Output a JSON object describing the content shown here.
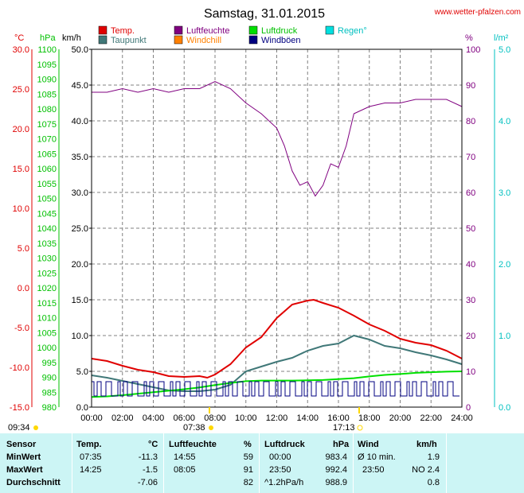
{
  "chart_data": {
    "type": "line",
    "title": "Samstag, 31.01.2015",
    "source": "www.wetter-pfalzen.com",
    "legend": [
      {
        "label": "Temp.",
        "color": "#e00000"
      },
      {
        "label": "Taupunkt",
        "color": "#407878"
      },
      {
        "label": "Luftfeuchte",
        "color": "#800080"
      },
      {
        "label": "Windchill",
        "color": "#ff8000"
      },
      {
        "label": "Luftdruck",
        "color": "#00e000"
      },
      {
        "label": "Windböen",
        "color": "#000080"
      },
      {
        "label": "Regen°",
        "color": "#00e0e0"
      }
    ],
    "axes": {
      "temp": {
        "unit": "°C",
        "color": "#e00000",
        "min": -15,
        "max": 30,
        "ticks": [
          "30.0",
          "25.0",
          "20.0",
          "15.0",
          "10.0",
          "5.0",
          "0.0",
          "-5.0",
          "-10.0",
          "-15.0"
        ]
      },
      "pressure": {
        "unit": "hPa",
        "color": "#00c000",
        "min": 980,
        "max": 1100
      },
      "wind": {
        "unit": "km/h",
        "color": "#000000",
        "min": 0,
        "max": 50,
        "ticks": [
          "50.0",
          "45.0",
          "40.0",
          "35.0",
          "30.0",
          "25.0",
          "20.0",
          "15.0",
          "10.0",
          "5.0",
          "0.0"
        ]
      },
      "humidity": {
        "unit": "%",
        "color": "#800080",
        "min": 0,
        "max": 100,
        "ticks": [
          "100",
          "90",
          "80",
          "70",
          "60",
          "50",
          "40",
          "30",
          "20",
          "10",
          "0"
        ]
      },
      "rain": {
        "unit": "l/m²",
        "color": "#00d0d0",
        "min": 0,
        "max": 5,
        "ticks": [
          "5.0",
          "4.0",
          "3.0",
          "2.0",
          "1.0",
          "0.0"
        ]
      }
    },
    "x_ticks": [
      "00:00",
      "02:00",
      "04:00",
      "06:00",
      "08:00",
      "10:00",
      "12:00",
      "14:00",
      "16:00",
      "18:00",
      "20:00",
      "22:00",
      "24:00"
    ],
    "sun": {
      "rise": "07:38",
      "set": "17:13",
      "moon": "09:34"
    },
    "series": [
      {
        "name": "Temp.",
        "axis": "temp",
        "color": "#e00000",
        "x": [
          0,
          1,
          2,
          3,
          4,
          5,
          6,
          7,
          7.5,
          8,
          9,
          10,
          11,
          12,
          13,
          14,
          14.4,
          15,
          16,
          17,
          18,
          19,
          20,
          21,
          22,
          23,
          24
        ],
        "y": [
          -8.9,
          -9.2,
          -9.8,
          -10.3,
          -10.6,
          -11.1,
          -11.2,
          -11.1,
          -11.3,
          -10.9,
          -9.6,
          -7.5,
          -6.2,
          -3.8,
          -2.1,
          -1.6,
          -1.5,
          -1.9,
          -2.5,
          -3.5,
          -4.6,
          -5.4,
          -6.4,
          -6.9,
          -7.2,
          -7.9,
          -8.9
        ]
      },
      {
        "name": "Taupunkt",
        "axis": "temp",
        "color": "#407878",
        "x": [
          0,
          1,
          2,
          3,
          4,
          5,
          6,
          7,
          7.5,
          8,
          9,
          10,
          11,
          12,
          13,
          14,
          15,
          16,
          17,
          18,
          19,
          20,
          21,
          22,
          23,
          24
        ],
        "y": [
          -11.0,
          -11.3,
          -11.7,
          -12.1,
          -12.5,
          -12.9,
          -13.0,
          -13.0,
          -12.9,
          -12.8,
          -12.2,
          -10.5,
          -9.9,
          -9.3,
          -8.8,
          -7.9,
          -7.3,
          -7.0,
          -6.0,
          -6.5,
          -7.3,
          -7.6,
          -8.1,
          -8.5,
          -9.0,
          -9.6
        ]
      },
      {
        "name": "Luftfeuchte",
        "axis": "humidity",
        "color": "#800080",
        "x": [
          0,
          1,
          2,
          3,
          4,
          5,
          6,
          7,
          8,
          9,
          10,
          11,
          12,
          12.5,
          13,
          13.5,
          14,
          14.5,
          15,
          15.5,
          16,
          16.5,
          17,
          18,
          19,
          20,
          21,
          22,
          23,
          24
        ],
        "y": [
          88,
          88,
          89,
          88,
          89,
          88,
          89,
          89,
          91,
          89,
          85,
          82,
          78,
          73,
          66,
          62,
          63,
          59,
          62,
          68,
          67,
          73,
          82,
          84,
          85,
          85,
          86,
          86,
          86,
          84
        ]
      },
      {
        "name": "Luftdruck",
        "axis": "pressure",
        "color": "#00e000",
        "x": [
          0,
          1,
          2,
          3,
          4,
          5,
          6,
          7,
          8,
          9,
          10,
          11,
          12,
          13,
          14,
          15,
          16,
          17,
          18,
          19,
          20,
          21,
          22,
          23,
          24
        ],
        "y": [
          983.4,
          983.6,
          984.0,
          984.5,
          985.0,
          985.5,
          986.0,
          986.6,
          987.4,
          988.1,
          988.7,
          988.9,
          988.9,
          988.9,
          989.0,
          989.1,
          989.4,
          989.7,
          990.3,
          990.8,
          991.1,
          991.5,
          991.7,
          991.9,
          992.0
        ]
      }
    ]
  },
  "stats": {
    "headers": {
      "sensor": "Sensor",
      "temp": "Temp.",
      "temp_unit": "°C",
      "humidity": "Luftfeuchte",
      "humidity_unit": "%",
      "pressure": "Luftdruck",
      "pressure_unit": "hPa",
      "wind": "Wind",
      "wind_unit": "km/h"
    },
    "rows": [
      {
        "label": "MinWert",
        "temp_time": "07:35",
        "temp_val": "-11.3",
        "hum_time": "14:55",
        "hum_val": "59",
        "press_time": "00:00",
        "press_val": "983.4",
        "wind_desc": "Ø 10 min.",
        "wind_val": "1.9"
      },
      {
        "label": "MaxWert",
        "temp_time": "14:25",
        "temp_val": "-1.5",
        "hum_time": "08:05",
        "hum_val": "91",
        "press_time": "23:50",
        "press_val": "992.4",
        "wind_desc": "23:50",
        "wind_val": "NO 2.4"
      },
      {
        "label": "Durchschnitt",
        "temp_time": "",
        "temp_val": "-7.06",
        "hum_time": "",
        "hum_val": "82",
        "press_time": "^1.2hPa/h",
        "press_val": "988.9",
        "wind_desc": "",
        "wind_val": "0.8"
      }
    ]
  }
}
